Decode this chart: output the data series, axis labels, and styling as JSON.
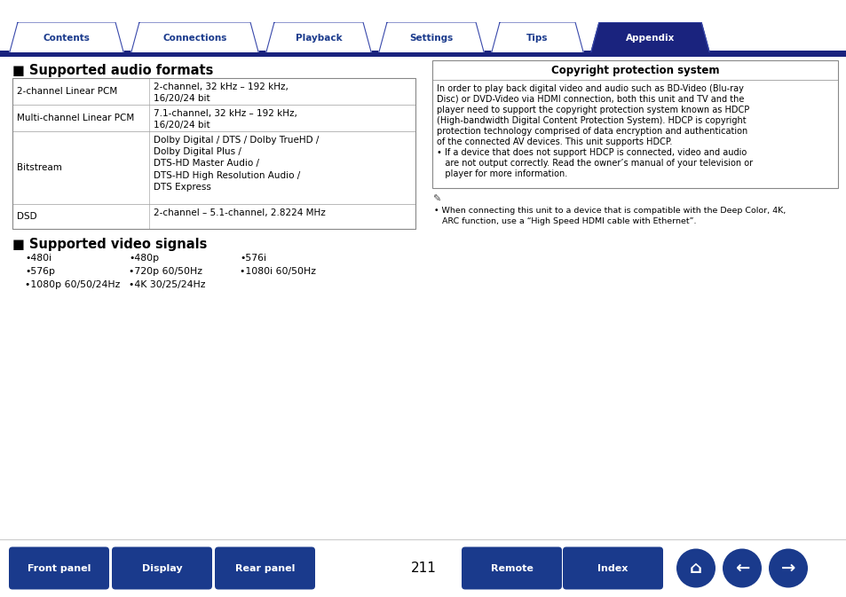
{
  "bg_color": "#ffffff",
  "tab_labels": [
    "Contents",
    "Connections",
    "Playback",
    "Settings",
    "Tips",
    "Appendix"
  ],
  "tab_active": 5,
  "tab_color_inactive": "#ffffff",
  "tab_color_active": "#1a237e",
  "tab_text_color_inactive": "#1a3a8c",
  "tab_text_color_active": "#ffffff",
  "tab_border_color": "#3949ab",
  "nav_bar_color": "#1a237e",
  "section1_title": "■ Supported audio formats",
  "audio_rows": [
    {
      "col1": "2-channel Linear PCM",
      "col2": "2-channel, 32 kHz – 192 kHz,\n16/20/24 bit"
    },
    {
      "col1": "Multi-channel Linear PCM",
      "col2": "7.1-channel, 32 kHz – 192 kHz,\n16/20/24 bit"
    },
    {
      "col1": "Bitstream",
      "col2": "Dolby Digital / DTS / Dolby TrueHD /\nDolby Digital Plus /\nDTS-HD Master Audio /\nDTS-HD High Resolution Audio /\nDTS Express"
    },
    {
      "col1": "DSD",
      "col2": "2-channel – 5.1-channel, 2.8224 MHz"
    }
  ],
  "section2_title": "■ Supported video signals",
  "video_col1": [
    "•480i",
    "•576p",
    "•1080p 60/50/24Hz"
  ],
  "video_col2": [
    "•480p",
    "•720p 60/50Hz",
    "•4K 30/25/24Hz"
  ],
  "video_col3": [
    "•576i",
    "•1080i 60/50Hz",
    ""
  ],
  "copyright_title": "Copyright protection system",
  "copyright_lines": [
    "In order to play back digital video and audio such as BD-Video (Blu-ray",
    "Disc) or DVD-Video via HDMI connection, both this unit and TV and the",
    "player need to support the copyright protection system known as HDCP",
    "(High-bandwidth Digital Content Protection System). HDCP is copyright",
    "protection technology comprised of data encryption and authentication",
    "of the connected AV devices. This unit supports HDCP.",
    "• If a device that does not support HDCP is connected, video and audio",
    "   are not output correctly. Read the owner’s manual of your television or",
    "   player for more information."
  ],
  "note_lines": [
    "• When connecting this unit to a device that is compatible with the Deep Color, 4K,",
    "   ARC function, use a “High Speed HDMI cable with Ethernet”."
  ],
  "bottom_buttons": [
    "Front panel",
    "Display",
    "Rear panel",
    "Remote",
    "Index"
  ],
  "page_number": "211",
  "button_color": "#1a3a8c",
  "button_text_color": "#ffffff"
}
